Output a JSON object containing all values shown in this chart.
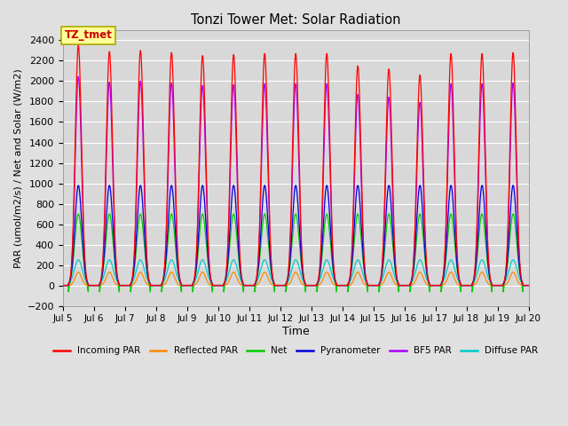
{
  "title": "Tonzi Tower Met: Solar Radiation",
  "ylabel": "PAR (umol/m2/s) / Net and Solar (W/m2)",
  "xlabel": "Time",
  "annotation": "TZ_tmet",
  "ylim": [
    -200,
    2500
  ],
  "yticks": [
    -200,
    0,
    200,
    400,
    600,
    800,
    1000,
    1200,
    1400,
    1600,
    1800,
    2000,
    2200,
    2400
  ],
  "start_day": 5,
  "end_day": 20,
  "num_days": 15,
  "series_colors": {
    "incoming_par": "#ff0000",
    "reflected_par": "#ff8800",
    "net": "#00cc00",
    "pyranometer": "#0000dd",
    "bf5_par": "#aa00ff",
    "diffuse_par": "#00cccc"
  },
  "legend_labels": [
    "Incoming PAR",
    "Reflected PAR",
    "Net",
    "Pyranometer",
    "BF5 PAR",
    "Diffuse PAR"
  ],
  "fig_bg_color": "#e0e0e0",
  "plot_bg_color": "#d8d8d8",
  "grid_color": "#ffffff",
  "annotation_bg": "#ffff99",
  "annotation_border": "#aaaa00"
}
